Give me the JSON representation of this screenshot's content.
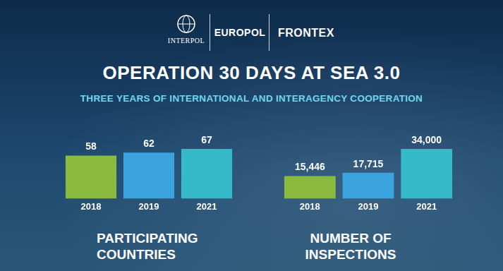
{
  "header": {
    "logos": [
      "INTERPOL",
      "EUROPOL",
      "FRONTEX"
    ],
    "title": "OPERATION 30 DAYS AT SEA 3.0",
    "subtitle": "THREE YEARS OF INTERNATIONAL AND INTERAGENCY COOPERATION"
  },
  "chart_data": [
    {
      "type": "bar",
      "title": "PARTICIPATING COUNTRIES",
      "categories": [
        "2018",
        "2019",
        "2021"
      ],
      "values": [
        58,
        62,
        67
      ],
      "colors": [
        "#8bbb3e",
        "#3ba4de",
        "#36b9c9"
      ],
      "ylim": [
        0,
        67
      ],
      "grid": false,
      "data_labels": true,
      "tick_labels": "x"
    },
    {
      "type": "bar",
      "title": "NUMBER OF INSPECTIONS",
      "categories": [
        "2018",
        "2019",
        "2021"
      ],
      "values": [
        15446,
        17715,
        34000
      ],
      "value_labels": [
        "15,446",
        "17,715",
        "34,000"
      ],
      "colors": [
        "#8bbb3e",
        "#3ba4de",
        "#36b9c9"
      ],
      "ylim": [
        0,
        34000
      ],
      "grid": false,
      "data_labels": true,
      "tick_labels": "x"
    }
  ]
}
